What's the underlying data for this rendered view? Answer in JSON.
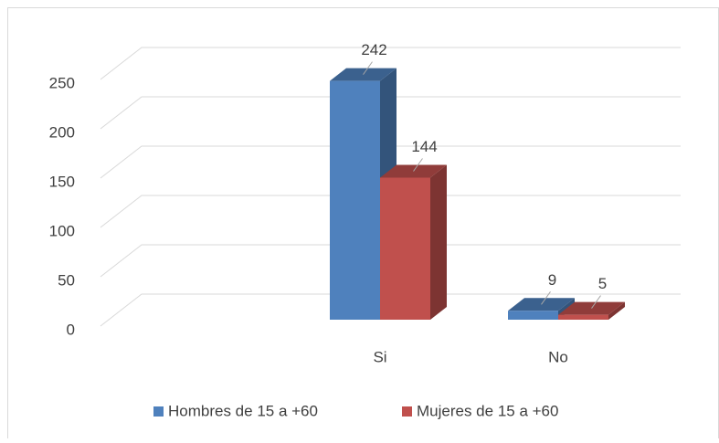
{
  "chart_data": {
    "type": "bar3d",
    "categories": [
      "Si",
      "No"
    ],
    "series": [
      {
        "name": "Hombres de 15 a +60",
        "color": "#4f81bd",
        "values": [
          242,
          9
        ]
      },
      {
        "name": "Mujeres de 15 a +60",
        "color": "#c0504d",
        "values": [
          144,
          5
        ]
      }
    ],
    "ylim": [
      0,
      250
    ],
    "yticks": [
      0,
      50,
      100,
      150,
      200,
      250
    ],
    "grid": true,
    "legend": "bottom"
  }
}
